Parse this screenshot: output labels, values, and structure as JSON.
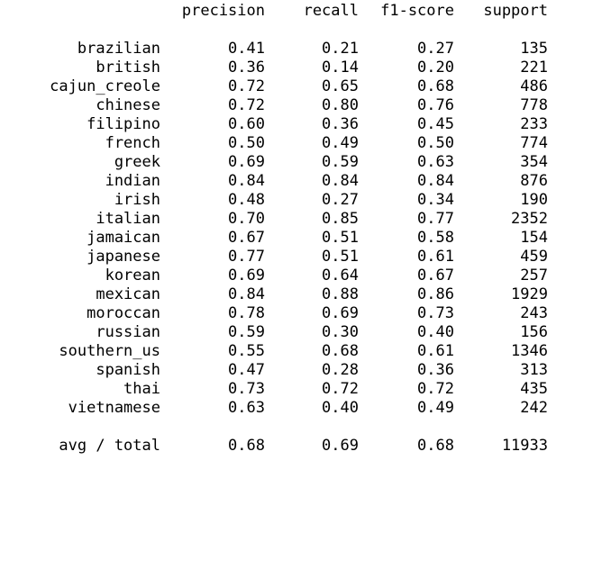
{
  "header": {
    "precision": "precision",
    "recall": "recall",
    "f1": "f1-score",
    "support": "support"
  },
  "rows": [
    {
      "label": "brazilian",
      "precision": "0.41",
      "recall": "0.21",
      "f1": "0.27",
      "support": "135"
    },
    {
      "label": "british",
      "precision": "0.36",
      "recall": "0.14",
      "f1": "0.20",
      "support": "221"
    },
    {
      "label": "cajun_creole",
      "precision": "0.72",
      "recall": "0.65",
      "f1": "0.68",
      "support": "486"
    },
    {
      "label": "chinese",
      "precision": "0.72",
      "recall": "0.80",
      "f1": "0.76",
      "support": "778"
    },
    {
      "label": "filipino",
      "precision": "0.60",
      "recall": "0.36",
      "f1": "0.45",
      "support": "233"
    },
    {
      "label": "french",
      "precision": "0.50",
      "recall": "0.49",
      "f1": "0.50",
      "support": "774"
    },
    {
      "label": "greek",
      "precision": "0.69",
      "recall": "0.59",
      "f1": "0.63",
      "support": "354"
    },
    {
      "label": "indian",
      "precision": "0.84",
      "recall": "0.84",
      "f1": "0.84",
      "support": "876"
    },
    {
      "label": "irish",
      "precision": "0.48",
      "recall": "0.27",
      "f1": "0.34",
      "support": "190"
    },
    {
      "label": "italian",
      "precision": "0.70",
      "recall": "0.85",
      "f1": "0.77",
      "support": "2352"
    },
    {
      "label": "jamaican",
      "precision": "0.67",
      "recall": "0.51",
      "f1": "0.58",
      "support": "154"
    },
    {
      "label": "japanese",
      "precision": "0.77",
      "recall": "0.51",
      "f1": "0.61",
      "support": "459"
    },
    {
      "label": "korean",
      "precision": "0.69",
      "recall": "0.64",
      "f1": "0.67",
      "support": "257"
    },
    {
      "label": "mexican",
      "precision": "0.84",
      "recall": "0.88",
      "f1": "0.86",
      "support": "1929"
    },
    {
      "label": "moroccan",
      "precision": "0.78",
      "recall": "0.69",
      "f1": "0.73",
      "support": "243"
    },
    {
      "label": "russian",
      "precision": "0.59",
      "recall": "0.30",
      "f1": "0.40",
      "support": "156"
    },
    {
      "label": "southern_us",
      "precision": "0.55",
      "recall": "0.68",
      "f1": "0.61",
      "support": "1346"
    },
    {
      "label": "spanish",
      "precision": "0.47",
      "recall": "0.28",
      "f1": "0.36",
      "support": "313"
    },
    {
      "label": "thai",
      "precision": "0.73",
      "recall": "0.72",
      "f1": "0.72",
      "support": "435"
    },
    {
      "label": "vietnamese",
      "precision": "0.63",
      "recall": "0.40",
      "f1": "0.49",
      "support": "242"
    }
  ],
  "total": {
    "label": "avg / total",
    "precision": "0.68",
    "recall": "0.69",
    "f1": "0.68",
    "support": "11933"
  }
}
